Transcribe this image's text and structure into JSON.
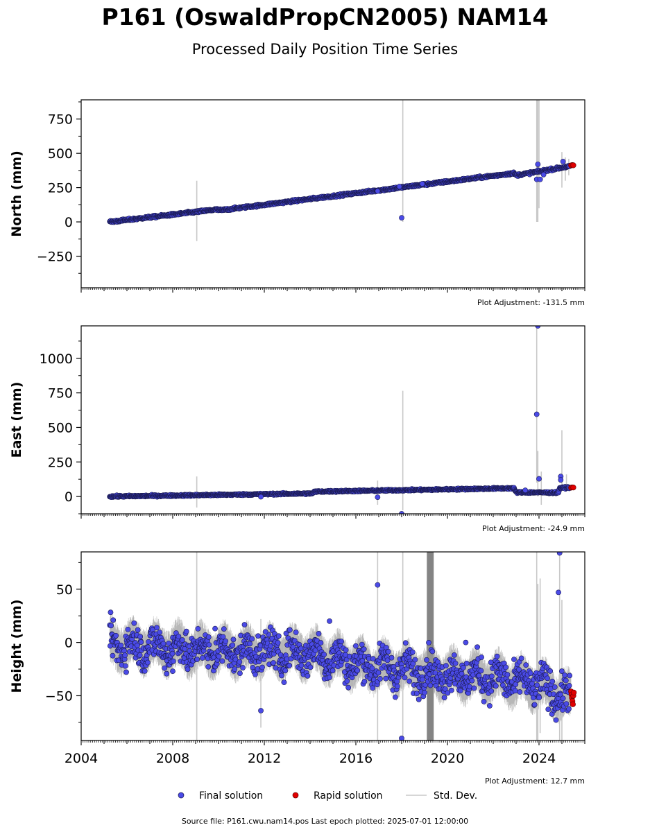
{
  "title": "P161 (OswaldPropCN2005) NAM14",
  "subtitle": "Processed Daily Position Time Series",
  "source_text": "Source file: P161.cwu.nam14.pos  Last epoch plotted: 2025-07-01 12:00:00",
  "legend": {
    "final_label": "Final solution",
    "rapid_label": "Rapid solution",
    "std_label": "Std. Dev."
  },
  "colors": {
    "final": "#4a4ae6",
    "final_edge": "#1a1a50",
    "rapid": "#e00000",
    "std": "#c8c8c8",
    "std_dark": "#6e6e6e"
  },
  "chart_data": [
    {
      "type": "scatter",
      "ylabel": "North (mm)",
      "adjustment": "Plot Adjustment: -131.5 mm",
      "xlim": [
        2004,
        2026
      ],
      "ylim": [
        -480,
        890
      ],
      "yticks": [
        -250,
        0,
        250,
        500,
        750
      ],
      "ytick_labels": [
        "−250",
        "0",
        "250",
        "500",
        "750"
      ],
      "trend": [
        [
          2005.25,
          0
        ],
        [
          2009.9,
          90
        ],
        [
          2010.1,
          85
        ],
        [
          2022.9,
          355
        ],
        [
          2023.0,
          340
        ],
        [
          2025.5,
          410
        ]
      ],
      "noise": 4,
      "outliers": [
        [
          2018.0,
          30
        ],
        [
          2016.95,
          225
        ],
        [
          2017.9,
          258
        ],
        [
          2018.9,
          278
        ],
        [
          2023.9,
          310
        ],
        [
          2023.95,
          420
        ],
        [
          2024.05,
          310
        ],
        [
          2024.2,
          345
        ],
        [
          2025.05,
          440
        ]
      ],
      "errorbars": [
        [
          2009.05,
          -140,
          300
        ],
        [
          2018.05,
          0,
          890
        ],
        [
          2023.9,
          0,
          890
        ],
        [
          2023.95,
          0,
          890
        ],
        [
          2024.0,
          100,
          890
        ],
        [
          2025.0,
          250,
          510
        ],
        [
          2025.15,
          300,
          470
        ],
        [
          2025.3,
          340,
          460
        ]
      ],
      "rapid": [
        [
          2025.4,
          412
        ],
        [
          2025.45,
          414
        ],
        [
          2025.5,
          413
        ]
      ]
    },
    {
      "type": "scatter",
      "ylabel": "East (mm)",
      "adjustment": "Plot Adjustment: -24.9 mm",
      "xlim": [
        2004,
        2026
      ],
      "ylim": [
        -125,
        1235
      ],
      "yticks": [
        0,
        250,
        500,
        750,
        1000
      ],
      "ytick_labels": [
        "0",
        "250",
        "500",
        "750",
        "1000"
      ],
      "trend": [
        [
          2005.25,
          0
        ],
        [
          2014.1,
          22
        ],
        [
          2014.2,
          35
        ],
        [
          2022.9,
          60
        ],
        [
          2023.0,
          30
        ],
        [
          2024.85,
          28
        ],
        [
          2024.9,
          62
        ],
        [
          2025.5,
          66
        ]
      ],
      "noise": 3,
      "outliers": [
        [
          2011.85,
          -2
        ],
        [
          2016.95,
          -5
        ],
        [
          2018.0,
          -125
        ],
        [
          2023.9,
          595
        ],
        [
          2023.95,
          1235
        ],
        [
          2024.0,
          128
        ],
        [
          2024.95,
          145
        ],
        [
          2024.95,
          120
        ],
        [
          2023.4,
          45
        ]
      ],
      "errorbars": [
        [
          2009.05,
          -80,
          145
        ],
        [
          2016.95,
          -60,
          115
        ],
        [
          2018.05,
          -100,
          765
        ],
        [
          2023.9,
          100,
          1235
        ],
        [
          2023.95,
          0,
          330
        ],
        [
          2024.1,
          -60,
          180
        ],
        [
          2025.0,
          50,
          480
        ],
        [
          2025.2,
          40,
          160
        ]
      ],
      "rapid": [
        [
          2025.4,
          64
        ],
        [
          2025.45,
          66
        ],
        [
          2025.5,
          65
        ]
      ]
    },
    {
      "type": "scatter",
      "ylabel": "Height (mm)",
      "adjustment": "Plot Adjustment: 12.7 mm",
      "xlim": [
        2004,
        2026
      ],
      "ylim": [
        -92,
        85
      ],
      "yticks": [
        -50,
        0,
        50
      ],
      "ytick_labels": [
        "−50",
        "0",
        "50"
      ],
      "xticks": [
        2004,
        2008,
        2012,
        2016,
        2020,
        2024
      ],
      "xtick_labels": [
        "2004",
        "2008",
        "2012",
        "2016",
        "2020",
        "2024"
      ],
      "trend": [
        [
          2005.25,
          -2
        ],
        [
          2010,
          -8
        ],
        [
          2014,
          -10
        ],
        [
          2016,
          -20
        ],
        [
          2018,
          -25
        ],
        [
          2020,
          -30
        ],
        [
          2022,
          -33
        ],
        [
          2024,
          -40
        ],
        [
          2025.3,
          -52
        ]
      ],
      "noise": 9,
      "seasonal": 7,
      "outliers": [
        [
          2005.4,
          21
        ],
        [
          2008.0,
          -27
        ],
        [
          2009.85,
          13
        ],
        [
          2011.85,
          -64
        ],
        [
          2012.05,
          10
        ],
        [
          2014.85,
          20
        ],
        [
          2016.95,
          54
        ],
        [
          2018.0,
          -90
        ],
        [
          2020.8,
          0
        ],
        [
          2024.85,
          47
        ],
        [
          2024.9,
          84
        ]
      ],
      "errorbars": [
        [
          2009.05,
          -92,
          85
        ],
        [
          2011.85,
          -80,
          22
        ],
        [
          2016.95,
          -92,
          85
        ],
        [
          2018.05,
          -92,
          85
        ],
        [
          2023.9,
          -92,
          85
        ],
        [
          2023.95,
          -92,
          55
        ],
        [
          2024.05,
          -85,
          60
        ],
        [
          2024.9,
          -92,
          85
        ],
        [
          2025.0,
          -92,
          40
        ]
      ],
      "gap_band": [
        2019.1,
        2019.4
      ],
      "rapid": [
        [
          2025.4,
          -46
        ],
        [
          2025.42,
          -49
        ],
        [
          2025.44,
          -52
        ],
        [
          2025.46,
          -55
        ],
        [
          2025.48,
          -58
        ],
        [
          2025.5,
          -50
        ],
        [
          2025.52,
          -47
        ]
      ]
    }
  ]
}
